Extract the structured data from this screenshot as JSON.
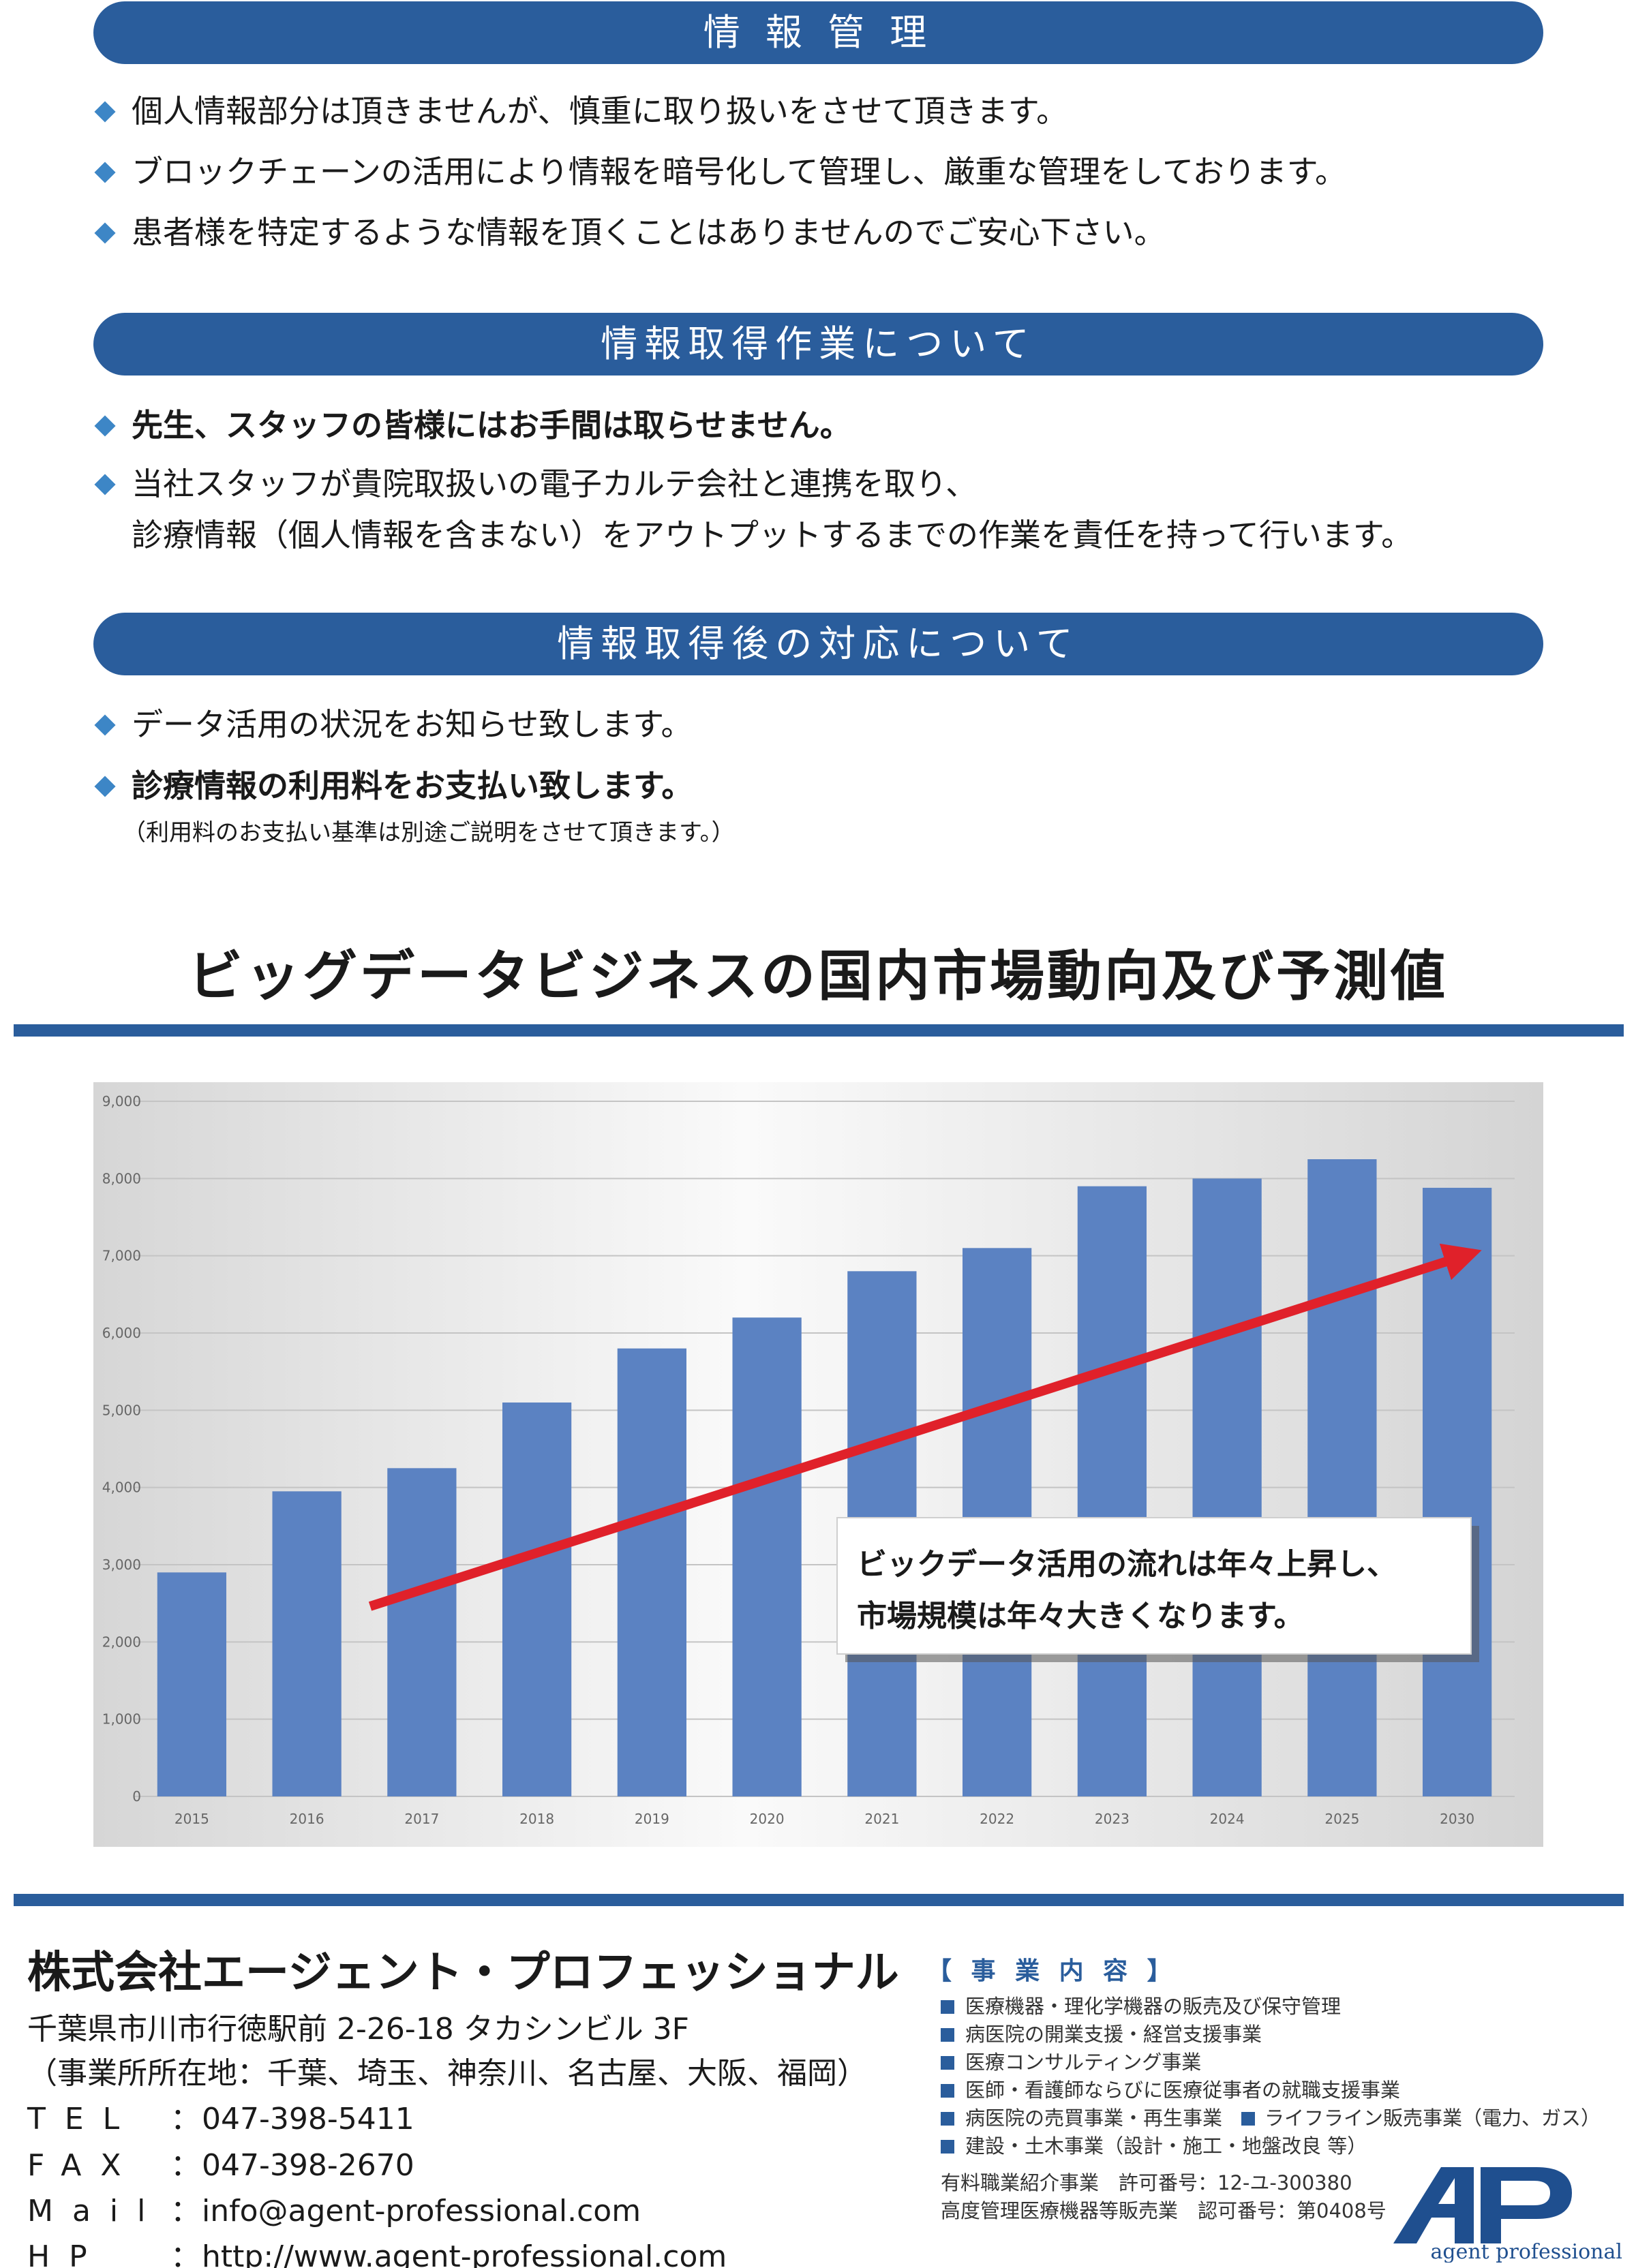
{
  "section1": {
    "title": "情 報 管 理",
    "items": [
      "個人情報部分は頂きませんが、慎重に取り扱いをさせて頂きます。",
      "ブロックチェーンの活用により情報を暗号化して管理し、厳重な管理をしております。",
      "患者様を特定するような情報を頂くことはありませんのでご安心下さい。"
    ]
  },
  "section2": {
    "title": "情報取得作業について",
    "items": [
      "先生、スタッフの皆様にはお手間は取らせません。",
      "当社スタッフが貴院取扱いの電子カルテ会社と連携を取り、"
    ],
    "continuation": "診療情報（個人情報を含まない）をアウトプットするまでの作業を責任を持って行います。"
  },
  "section3": {
    "title": "情報取得後の対応について",
    "items": [
      "データ活用の状況をお知らせ致します。",
      "診療情報の利用料をお支払い致します。"
    ],
    "note": "（利用料のお支払い基準は別途ご説明をさせて頂きます。）"
  },
  "headline": "ビッグデータビジネスの国内市場動向及び予測値",
  "chart_data": {
    "type": "bar",
    "categories": [
      "2015",
      "2016",
      "2017",
      "2018",
      "2019",
      "2020",
      "2021",
      "2022",
      "2023",
      "2024",
      "2025",
      "2030"
    ],
    "values": [
      2900,
      3950,
      4250,
      5100,
      5800,
      6200,
      6800,
      7100,
      7900,
      8000,
      8250,
      7880
    ],
    "ylim": [
      0,
      9000
    ],
    "yticks": [
      "0",
      "1,000",
      "2,000",
      "3,000",
      "4,000",
      "5,000",
      "6,000",
      "7,000",
      "8,000",
      "9,000"
    ],
    "grid": true,
    "bar_color": "#5b82c2",
    "trend_color": "#e0212a",
    "annotation": {
      "line1": "ビックデータ活用の流れは年々上昇し、",
      "line2": "市場規模は年々大きくなります。"
    }
  },
  "company": {
    "name": "株式会社エージェント・プロフェッショナル",
    "address": "千葉県市川市行徳駅前 2-26-18 タカシンビル 3F",
    "offices": "（事業所所在地：千葉、埼玉、神奈川、名古屋、大阪、福岡）",
    "tel_label": "TEL",
    "tel": "047-398-5411",
    "fax_label": "FAX",
    "fax": "047-398-2670",
    "mail_label": "Mail",
    "mail": "info@agent-professional.com",
    "hp_label": "HP",
    "hp": "http://www.agent-professional.com",
    "colon": "："
  },
  "business": {
    "heading": "【 事 業 内 容 】",
    "items": [
      "医療機器・理化学機器の販売及び保守管理",
      "病医院の開業支援・経営支援事業",
      "医療コンサルティング事業",
      "医師・看護師ならびに医療従事者の就職支援事業",
      "病医院の売買事業・再生事業",
      "建設・土木事業（設計・施工・地盤改良 等）"
    ],
    "item_extra": "ライフライン販売事業（電力、ガス）",
    "license1": "有料職業紹介事業　許可番号：12-ユ-300380",
    "license2": "高度管理医療機器等販売業　認可番号：第0408号"
  },
  "logo": {
    "mark": "AP",
    "text": "agent professional",
    "color": "#1f4f8f"
  }
}
